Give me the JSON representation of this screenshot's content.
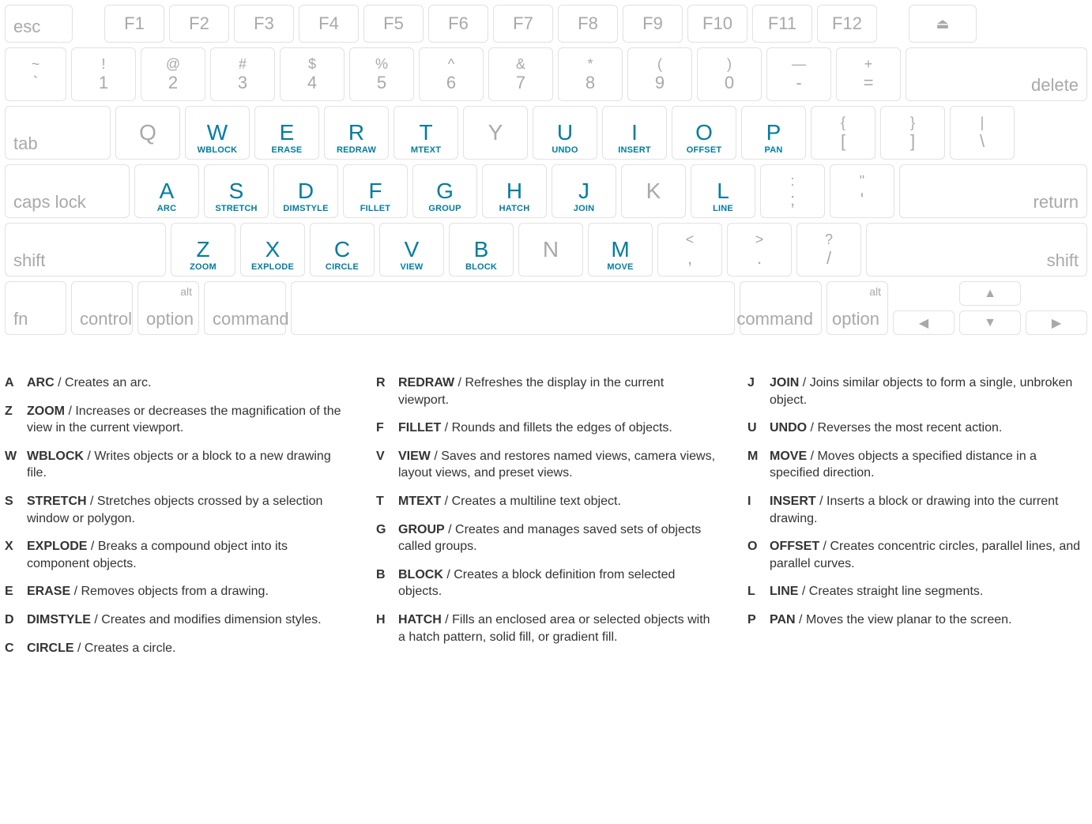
{
  "colors": {
    "keyBorder": "#e2e2e2",
    "inactiveText": "#a9a9a9",
    "commandText": "#007d9e",
    "background": "#ffffff",
    "legendText": "#333333"
  },
  "typography": {
    "fontFamily": "Segoe UI, Arial, sans-serif",
    "keyLetterSize": 28,
    "keySubLabelSize": 11,
    "legendSize": 16
  },
  "keyboard": {
    "row0": {
      "esc": "esc",
      "fkeys": [
        "F1",
        "F2",
        "F3",
        "F4",
        "F5",
        "F6",
        "F7",
        "F8",
        "F9",
        "F10",
        "F11",
        "F12"
      ],
      "eject": "⏏"
    },
    "row1": {
      "keys": [
        {
          "top": "~",
          "bot": "`"
        },
        {
          "top": "!",
          "bot": "1"
        },
        {
          "top": "@",
          "bot": "2"
        },
        {
          "top": "#",
          "bot": "3"
        },
        {
          "top": "$",
          "bot": "4"
        },
        {
          "top": "%",
          "bot": "5"
        },
        {
          "top": "^",
          "bot": "6"
        },
        {
          "top": "&",
          "bot": "7"
        },
        {
          "top": "*",
          "bot": "8"
        },
        {
          "top": "(",
          "bot": "9"
        },
        {
          "top": ")",
          "bot": "0"
        },
        {
          "top": "—",
          "bot": "-"
        },
        {
          "top": "+",
          "bot": "="
        }
      ],
      "delete": "delete"
    },
    "row2": {
      "tab": "tab",
      "keys": [
        {
          "letter": "Q",
          "cmd": null
        },
        {
          "letter": "W",
          "cmd": "WBLOCK"
        },
        {
          "letter": "E",
          "cmd": "ERASE"
        },
        {
          "letter": "R",
          "cmd": "REDRAW"
        },
        {
          "letter": "T",
          "cmd": "MTEXT"
        },
        {
          "letter": "Y",
          "cmd": null
        },
        {
          "letter": "U",
          "cmd": "UNDO"
        },
        {
          "letter": "I",
          "cmd": "INSERT"
        },
        {
          "letter": "O",
          "cmd": "OFFSET"
        },
        {
          "letter": "P",
          "cmd": "PAN"
        }
      ],
      "brackets": [
        {
          "top": "{",
          "bot": "["
        },
        {
          "top": "}",
          "bot": "]"
        },
        {
          "top": "|",
          "bot": "\\"
        }
      ]
    },
    "row3": {
      "caps": "caps lock",
      "keys": [
        {
          "letter": "A",
          "cmd": "ARC"
        },
        {
          "letter": "S",
          "cmd": "STRETCH"
        },
        {
          "letter": "D",
          "cmd": "DIMSTYLE"
        },
        {
          "letter": "F",
          "cmd": "FILLET"
        },
        {
          "letter": "G",
          "cmd": "GROUP"
        },
        {
          "letter": "H",
          "cmd": "HATCH"
        },
        {
          "letter": "J",
          "cmd": "JOIN"
        },
        {
          "letter": "K",
          "cmd": null
        },
        {
          "letter": "L",
          "cmd": "LINE"
        }
      ],
      "punct": [
        {
          "top": ":",
          "bot": ";"
        },
        {
          "top": "\"",
          "bot": "'"
        }
      ],
      "return": "return"
    },
    "row4": {
      "shiftL": "shift",
      "keys": [
        {
          "letter": "Z",
          "cmd": "ZOOM"
        },
        {
          "letter": "X",
          "cmd": "EXPLODE"
        },
        {
          "letter": "C",
          "cmd": "CIRCLE"
        },
        {
          "letter": "V",
          "cmd": "VIEW"
        },
        {
          "letter": "B",
          "cmd": "BLOCK"
        },
        {
          "letter": "N",
          "cmd": null
        },
        {
          "letter": "M",
          "cmd": "MOVE"
        }
      ],
      "punct": [
        {
          "top": "<",
          "bot": ","
        },
        {
          "top": ">",
          "bot": "."
        },
        {
          "top": "?",
          "bot": "/"
        }
      ],
      "shiftR": "shift"
    },
    "row5": {
      "fn": "fn",
      "control": "control",
      "optionL": {
        "alt": "alt",
        "label": "option"
      },
      "commandL": "command",
      "space": "",
      "commandR": "command",
      "optionR": {
        "alt": "alt",
        "label": "option"
      },
      "arrows": {
        "up": "▲",
        "down": "▼",
        "left": "◀",
        "right": "▶"
      }
    }
  },
  "legend": {
    "col1": [
      {
        "k": "A",
        "cmd": "ARC",
        "desc": "Creates an arc."
      },
      {
        "k": "Z",
        "cmd": "ZOOM",
        "desc": "Increases or decreases the magnification of the view in the current viewport."
      },
      {
        "k": "W",
        "cmd": "WBLOCK",
        "desc": "Writes objects or a block to a new drawing file."
      },
      {
        "k": "S",
        "cmd": "STRETCH",
        "desc": "Stretches objects crossed by a selection window or polygon."
      },
      {
        "k": "X",
        "cmd": "EXPLODE",
        "desc": "Breaks a compound object into its component objects."
      },
      {
        "k": "E",
        "cmd": "ERASE",
        "desc": "Removes objects from a drawing."
      },
      {
        "k": "D",
        "cmd": "DIMSTYLE",
        "desc": "Creates and modifies dimension styles."
      },
      {
        "k": "C",
        "cmd": "CIRCLE",
        "desc": "Creates a circle."
      }
    ],
    "col2": [
      {
        "k": "R",
        "cmd": "REDRAW",
        "desc": "Refreshes the display in the current viewport."
      },
      {
        "k": "F",
        "cmd": "FILLET",
        "desc": "Rounds and fillets the edges of objects."
      },
      {
        "k": "V",
        "cmd": "VIEW",
        "desc": "Saves and restores named views, camera views, layout views, and preset views."
      },
      {
        "k": "T",
        "cmd": "MTEXT",
        "desc": "Creates a multiline text object."
      },
      {
        "k": "G",
        "cmd": "GROUP",
        "desc": "Creates and manages saved sets of objects called groups."
      },
      {
        "k": "B",
        "cmd": "BLOCK",
        "desc": "Creates a block definition from selected objects."
      },
      {
        "k": "H",
        "cmd": "HATCH",
        "desc": "Fills an enclosed area or selected objects with a hatch pattern, solid fill, or gradient fill."
      }
    ],
    "col3": [
      {
        "k": "J",
        "cmd": "JOIN",
        "desc": "Joins similar objects to form a single, unbroken object."
      },
      {
        "k": "U",
        "cmd": "UNDO",
        "desc": "Reverses the most recent action."
      },
      {
        "k": "M",
        "cmd": "MOVE",
        "desc": "Moves objects a specified distance in a specified direction."
      },
      {
        "k": "I",
        "cmd": "INSERT",
        "desc": "Inserts a block or drawing into the current drawing."
      },
      {
        "k": "O",
        "cmd": "OFFSET",
        "desc": "Creates concentric circles, parallel lines, and parallel curves."
      },
      {
        "k": "L",
        "cmd": "LINE",
        "desc": "Creates straight line segments."
      },
      {
        "k": "P",
        "cmd": "PAN",
        "desc": "Moves the view planar to the screen."
      }
    ]
  }
}
